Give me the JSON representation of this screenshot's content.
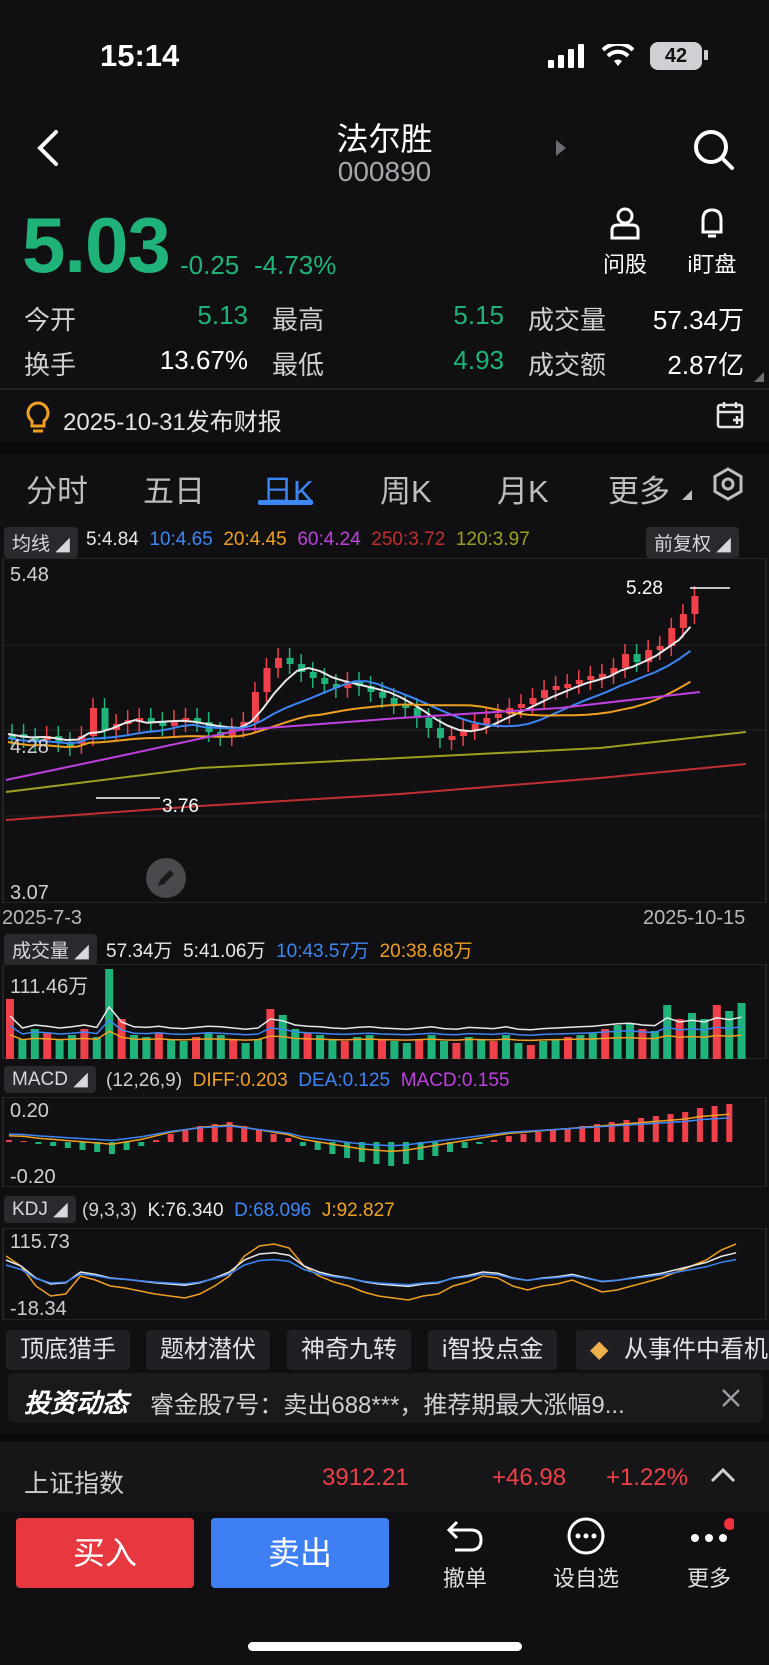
{
  "status": {
    "time": "15:14",
    "battery": "42"
  },
  "header": {
    "name": "法尔胜",
    "code": "000890"
  },
  "quote": {
    "price": "5.03",
    "change": "-0.25",
    "change_pct": "-4.73%",
    "actions": [
      {
        "label": "问股",
        "icon": "person-icon"
      },
      {
        "label": "i盯盘",
        "icon": "bell-icon"
      }
    ],
    "stats": {
      "open_label": "今开",
      "open": "5.13",
      "high_label": "最高",
      "high": "5.15",
      "volume_label": "成交量",
      "volume": "57.34万",
      "turnover_label": "换手",
      "turnover": "13.67%",
      "low_label": "最低",
      "low": "4.93",
      "amount_label": "成交额",
      "amount": "2.87亿"
    }
  },
  "notice": {
    "text": "2025-10-31发布财报"
  },
  "tabs": [
    "分时",
    "五日",
    "日K",
    "周K",
    "月K",
    "更多"
  ],
  "active_tab": "日K",
  "ma_legend": {
    "label": "均线",
    "items": [
      {
        "text": "5:4.84",
        "color": "#e8e8ea"
      },
      {
        "text": "10:4.65",
        "color": "#3d86f6"
      },
      {
        "text": "20:4.45",
        "color": "#f0a020"
      },
      {
        "text": "60:4.24",
        "color": "#c040e0"
      },
      {
        "text": "250:3.72",
        "color": "#c03030"
      },
      {
        "text": "120:3.97",
        "color": "#a0a020"
      }
    ],
    "adjust": "前复权"
  },
  "kline": {
    "y_top": "5.48",
    "y_mid": "4.28",
    "y_bottom": "3.07",
    "high_marker": "5.28",
    "low_marker": "3.76",
    "date_start": "2025-7-3",
    "date_end": "2025-10-15"
  },
  "volume_panel": {
    "label": "成交量",
    "legend": [
      {
        "text": "57.34万",
        "color": "#e8e8ea"
      },
      {
        "text": "5:41.06万",
        "color": "#e8e8ea"
      },
      {
        "text": "10:43.57万",
        "color": "#3d86f6"
      },
      {
        "text": "20:38.68万",
        "color": "#f0a020"
      }
    ],
    "max": "111.46万"
  },
  "macd_panel": {
    "label": "MACD",
    "legend": [
      {
        "text": "(12,26,9)",
        "color": "#cfcfd4"
      },
      {
        "text": "DIFF:0.203",
        "color": "#f0a020"
      },
      {
        "text": "DEA:0.125",
        "color": "#3d86f6"
      },
      {
        "text": "MACD:0.155",
        "color": "#c040e0"
      }
    ],
    "top": "0.20",
    "bottom": "-0.20"
  },
  "kdj_panel": {
    "label": "KDJ",
    "legend": [
      {
        "text": "(9,3,3)",
        "color": "#cfcfd4"
      },
      {
        "text": "K:76.340",
        "color": "#e8e8ea"
      },
      {
        "text": "D:68.096",
        "color": "#3d86f6"
      },
      {
        "text": "J:92.827",
        "color": "#f0a020"
      }
    ],
    "top": "115.73",
    "bottom": "-18.34"
  },
  "chips": [
    "顶底猎手",
    "题材潜伏",
    "神奇九转",
    "i智投点金",
    "从事件中看机"
  ],
  "news": {
    "title": "投资动态",
    "text": "睿金股7号：卖出688***，推荐期最大涨幅9..."
  },
  "index": {
    "name": "上证指数",
    "value": "3912.21",
    "change": "+46.98",
    "pct": "+1.22%"
  },
  "bottom": {
    "buy": "买入",
    "sell": "卖出",
    "tools": [
      {
        "label": "撤单",
        "icon": "undo-icon"
      },
      {
        "label": "设自选",
        "icon": "more-circle-icon"
      },
      {
        "label": "更多",
        "icon": "more-dots-icon"
      }
    ]
  }
}
